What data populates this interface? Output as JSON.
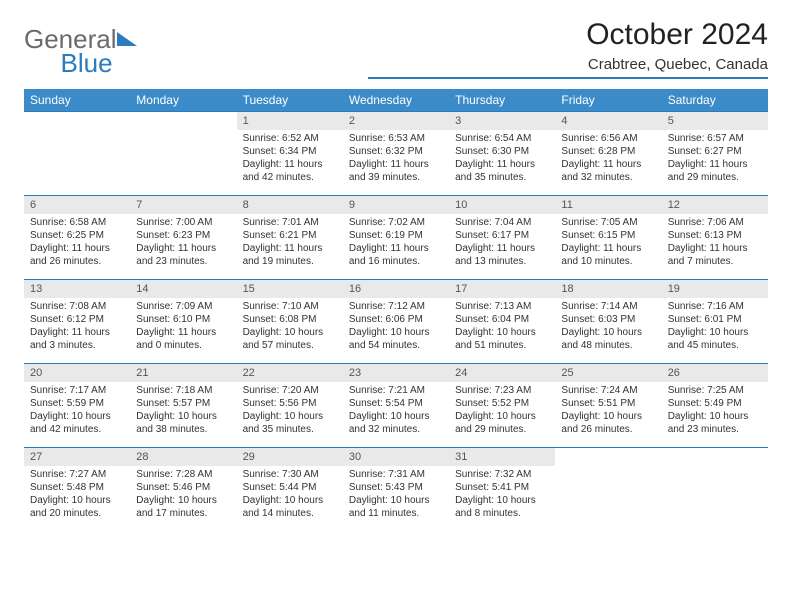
{
  "brand": {
    "word1": "General",
    "word2": "Blue"
  },
  "title": "October 2024",
  "location": "Crabtree, Quebec, Canada",
  "colors": {
    "header_bg": "#3b8bc9",
    "header_text": "#ffffff",
    "daynum_bg": "#e9e9e9",
    "border": "#2b7bbf",
    "logo_gray": "#6b6b6b",
    "logo_blue": "#2b7bbf"
  },
  "columns": [
    "Sunday",
    "Monday",
    "Tuesday",
    "Wednesday",
    "Thursday",
    "Friday",
    "Saturday"
  ],
  "weeks": [
    [
      null,
      null,
      {
        "n": "1",
        "sunrise": "6:52 AM",
        "sunset": "6:34 PM",
        "daylight": "11 hours and 42 minutes."
      },
      {
        "n": "2",
        "sunrise": "6:53 AM",
        "sunset": "6:32 PM",
        "daylight": "11 hours and 39 minutes."
      },
      {
        "n": "3",
        "sunrise": "6:54 AM",
        "sunset": "6:30 PM",
        "daylight": "11 hours and 35 minutes."
      },
      {
        "n": "4",
        "sunrise": "6:56 AM",
        "sunset": "6:28 PM",
        "daylight": "11 hours and 32 minutes."
      },
      {
        "n": "5",
        "sunrise": "6:57 AM",
        "sunset": "6:27 PM",
        "daylight": "11 hours and 29 minutes."
      }
    ],
    [
      {
        "n": "6",
        "sunrise": "6:58 AM",
        "sunset": "6:25 PM",
        "daylight": "11 hours and 26 minutes."
      },
      {
        "n": "7",
        "sunrise": "7:00 AM",
        "sunset": "6:23 PM",
        "daylight": "11 hours and 23 minutes."
      },
      {
        "n": "8",
        "sunrise": "7:01 AM",
        "sunset": "6:21 PM",
        "daylight": "11 hours and 19 minutes."
      },
      {
        "n": "9",
        "sunrise": "7:02 AM",
        "sunset": "6:19 PM",
        "daylight": "11 hours and 16 minutes."
      },
      {
        "n": "10",
        "sunrise": "7:04 AM",
        "sunset": "6:17 PM",
        "daylight": "11 hours and 13 minutes."
      },
      {
        "n": "11",
        "sunrise": "7:05 AM",
        "sunset": "6:15 PM",
        "daylight": "11 hours and 10 minutes."
      },
      {
        "n": "12",
        "sunrise": "7:06 AM",
        "sunset": "6:13 PM",
        "daylight": "11 hours and 7 minutes."
      }
    ],
    [
      {
        "n": "13",
        "sunrise": "7:08 AM",
        "sunset": "6:12 PM",
        "daylight": "11 hours and 3 minutes."
      },
      {
        "n": "14",
        "sunrise": "7:09 AM",
        "sunset": "6:10 PM",
        "daylight": "11 hours and 0 minutes."
      },
      {
        "n": "15",
        "sunrise": "7:10 AM",
        "sunset": "6:08 PM",
        "daylight": "10 hours and 57 minutes."
      },
      {
        "n": "16",
        "sunrise": "7:12 AM",
        "sunset": "6:06 PM",
        "daylight": "10 hours and 54 minutes."
      },
      {
        "n": "17",
        "sunrise": "7:13 AM",
        "sunset": "6:04 PM",
        "daylight": "10 hours and 51 minutes."
      },
      {
        "n": "18",
        "sunrise": "7:14 AM",
        "sunset": "6:03 PM",
        "daylight": "10 hours and 48 minutes."
      },
      {
        "n": "19",
        "sunrise": "7:16 AM",
        "sunset": "6:01 PM",
        "daylight": "10 hours and 45 minutes."
      }
    ],
    [
      {
        "n": "20",
        "sunrise": "7:17 AM",
        "sunset": "5:59 PM",
        "daylight": "10 hours and 42 minutes."
      },
      {
        "n": "21",
        "sunrise": "7:18 AM",
        "sunset": "5:57 PM",
        "daylight": "10 hours and 38 minutes."
      },
      {
        "n": "22",
        "sunrise": "7:20 AM",
        "sunset": "5:56 PM",
        "daylight": "10 hours and 35 minutes."
      },
      {
        "n": "23",
        "sunrise": "7:21 AM",
        "sunset": "5:54 PM",
        "daylight": "10 hours and 32 minutes."
      },
      {
        "n": "24",
        "sunrise": "7:23 AM",
        "sunset": "5:52 PM",
        "daylight": "10 hours and 29 minutes."
      },
      {
        "n": "25",
        "sunrise": "7:24 AM",
        "sunset": "5:51 PM",
        "daylight": "10 hours and 26 minutes."
      },
      {
        "n": "26",
        "sunrise": "7:25 AM",
        "sunset": "5:49 PM",
        "daylight": "10 hours and 23 minutes."
      }
    ],
    [
      {
        "n": "27",
        "sunrise": "7:27 AM",
        "sunset": "5:48 PM",
        "daylight": "10 hours and 20 minutes."
      },
      {
        "n": "28",
        "sunrise": "7:28 AM",
        "sunset": "5:46 PM",
        "daylight": "10 hours and 17 minutes."
      },
      {
        "n": "29",
        "sunrise": "7:30 AM",
        "sunset": "5:44 PM",
        "daylight": "10 hours and 14 minutes."
      },
      {
        "n": "30",
        "sunrise": "7:31 AM",
        "sunset": "5:43 PM",
        "daylight": "10 hours and 11 minutes."
      },
      {
        "n": "31",
        "sunrise": "7:32 AM",
        "sunset": "5:41 PM",
        "daylight": "10 hours and 8 minutes."
      },
      null,
      null
    ]
  ],
  "labels": {
    "sunrise": "Sunrise:",
    "sunset": "Sunset:",
    "daylight": "Daylight:"
  }
}
